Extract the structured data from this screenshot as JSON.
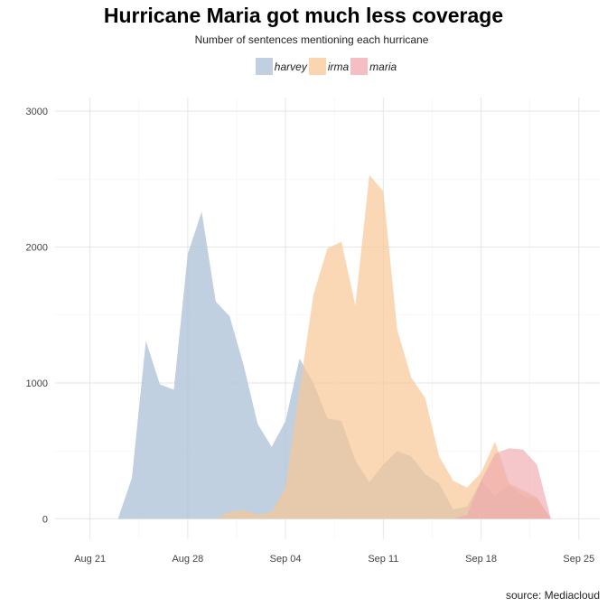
{
  "chart_data": {
    "type": "area",
    "title": "Hurricane Maria got much less coverage",
    "subtitle": "Number of sentences mentioning each hurricane",
    "source": "source: Mediacloud",
    "legend_position": "top",
    "grid": true,
    "x_start_date": "2017-08-20",
    "x_tick_labels": [
      "Aug 21",
      "Aug 28",
      "Sep 04",
      "Sep 11",
      "Sep 18",
      "Sep 25"
    ],
    "x_tick_days": [
      1,
      8,
      15,
      22,
      29,
      36
    ],
    "xlim_days": [
      -1.5,
      37.5
    ],
    "ylim": [
      -150,
      3100
    ],
    "y_ticks": [
      0,
      1000,
      2000,
      3000
    ],
    "series": [
      {
        "name": "harvey",
        "color": "#b0c4d8",
        "points": [
          [
            3,
            0
          ],
          [
            4,
            300
          ],
          [
            5,
            1310
          ],
          [
            6,
            990
          ],
          [
            7,
            950
          ],
          [
            8,
            1950
          ],
          [
            9,
            2260
          ],
          [
            10,
            1600
          ],
          [
            11,
            1490
          ],
          [
            12,
            1130
          ],
          [
            13,
            700
          ],
          [
            14,
            530
          ],
          [
            15,
            720
          ],
          [
            16,
            1180
          ],
          [
            17,
            1000
          ],
          [
            18,
            740
          ],
          [
            19,
            720
          ],
          [
            20,
            430
          ],
          [
            21,
            270
          ],
          [
            22,
            400
          ],
          [
            23,
            500
          ],
          [
            24,
            460
          ],
          [
            25,
            330
          ],
          [
            26,
            260
          ],
          [
            27,
            70
          ],
          [
            28,
            90
          ],
          [
            29,
            280
          ],
          [
            30,
            170
          ],
          [
            31,
            250
          ],
          [
            32,
            170
          ],
          [
            33,
            150
          ],
          [
            34,
            0
          ]
        ]
      },
      {
        "name": "irma",
        "color": "#f8c796",
        "points": [
          [
            9,
            0
          ],
          [
            10,
            0
          ],
          [
            11,
            50
          ],
          [
            12,
            65
          ],
          [
            13,
            30
          ],
          [
            14,
            50
          ],
          [
            15,
            230
          ],
          [
            16,
            950
          ],
          [
            17,
            1650
          ],
          [
            18,
            1990
          ],
          [
            19,
            2040
          ],
          [
            20,
            1570
          ],
          [
            21,
            2530
          ],
          [
            22,
            2410
          ],
          [
            23,
            1390
          ],
          [
            24,
            1040
          ],
          [
            25,
            890
          ],
          [
            26,
            460
          ],
          [
            27,
            280
          ],
          [
            28,
            230
          ],
          [
            29,
            340
          ],
          [
            30,
            570
          ],
          [
            31,
            260
          ],
          [
            32,
            210
          ],
          [
            33,
            160
          ],
          [
            34,
            0
          ]
        ]
      },
      {
        "name": "maria",
        "color": "#f0a8ad",
        "points": [
          [
            27,
            0
          ],
          [
            28,
            30
          ],
          [
            29,
            280
          ],
          [
            30,
            480
          ],
          [
            31,
            520
          ],
          [
            32,
            510
          ],
          [
            33,
            400
          ],
          [
            34,
            0
          ]
        ]
      }
    ]
  }
}
